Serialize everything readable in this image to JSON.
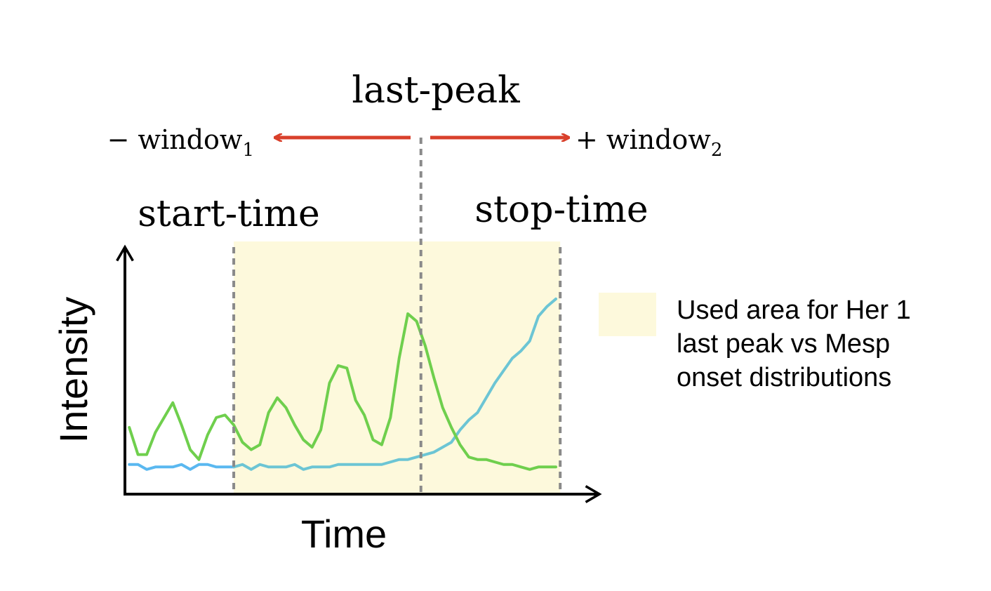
{
  "labels": {
    "last_peak": "last-peak",
    "minus_window": "− window",
    "minus_window_sub": "1",
    "plus_window": "+ window",
    "plus_window_sub": "2",
    "start_time": "start-time",
    "stop_time": "stop-time",
    "x_axis": "Time",
    "y_axis": "Intensity"
  },
  "legend": {
    "lines": [
      "Used area for Her 1",
      "last peak vs Mesp",
      "onset distributions"
    ]
  },
  "colors": {
    "shaded_area": "#fdf9dc",
    "arrow": "#d9402b",
    "green_trace": "#6fcf4d",
    "blue_trace": "#5ab8f0",
    "teal_trace": "#6cc5d4",
    "dashed_line": "#8a8a8a",
    "axis": "#000000"
  },
  "chart_data": {
    "type": "line",
    "x": [
      0,
      1,
      2,
      3,
      4,
      5,
      6,
      7,
      8,
      9,
      10,
      11,
      12,
      13,
      14,
      15,
      16,
      17,
      18,
      19,
      20,
      21,
      22,
      23,
      24,
      25,
      26,
      27,
      28,
      29,
      30,
      31,
      32,
      33,
      34,
      35,
      36,
      37,
      38,
      39,
      40,
      41,
      42,
      43,
      44,
      45,
      46,
      47,
      48,
      49
    ],
    "start_time": 12,
    "last_peak": 33.5,
    "stop_time": 49.5,
    "series": [
      {
        "key": "green",
        "values": [
          0.27,
          0.16,
          0.16,
          0.25,
          0.31,
          0.37,
          0.28,
          0.18,
          0.14,
          0.24,
          0.31,
          0.32,
          0.28,
          0.21,
          0.18,
          0.2,
          0.33,
          0.39,
          0.35,
          0.28,
          0.22,
          0.19,
          0.26,
          0.45,
          0.52,
          0.51,
          0.38,
          0.32,
          0.22,
          0.2,
          0.31,
          0.55,
          0.73,
          0.7,
          0.6,
          0.47,
          0.35,
          0.27,
          0.2,
          0.15,
          0.14,
          0.14,
          0.13,
          0.12,
          0.12,
          0.11,
          0.1,
          0.11,
          0.11,
          0.11
        ]
      },
      {
        "key": "blue",
        "values": [
          0.12,
          0.12,
          0.1,
          0.11,
          0.11,
          0.11,
          0.12,
          0.1,
          0.12,
          0.12,
          0.11,
          0.11,
          0.11,
          0.12,
          0.1,
          0.12,
          0.11,
          0.11,
          0.11,
          0.12,
          0.1,
          0.11,
          0.11,
          0.11,
          0.12,
          0.12,
          0.12,
          0.12,
          0.12,
          0.12,
          0.13,
          0.14,
          0.14,
          0.15,
          0.16,
          0.17,
          0.19,
          0.21,
          0.26,
          0.3,
          0.33,
          0.39,
          0.45,
          0.5,
          0.55,
          0.58,
          0.62,
          0.72,
          0.76,
          0.79
        ]
      }
    ],
    "ylim": [
      0,
      1
    ],
    "xlim": [
      -0.5,
      54
    ]
  }
}
